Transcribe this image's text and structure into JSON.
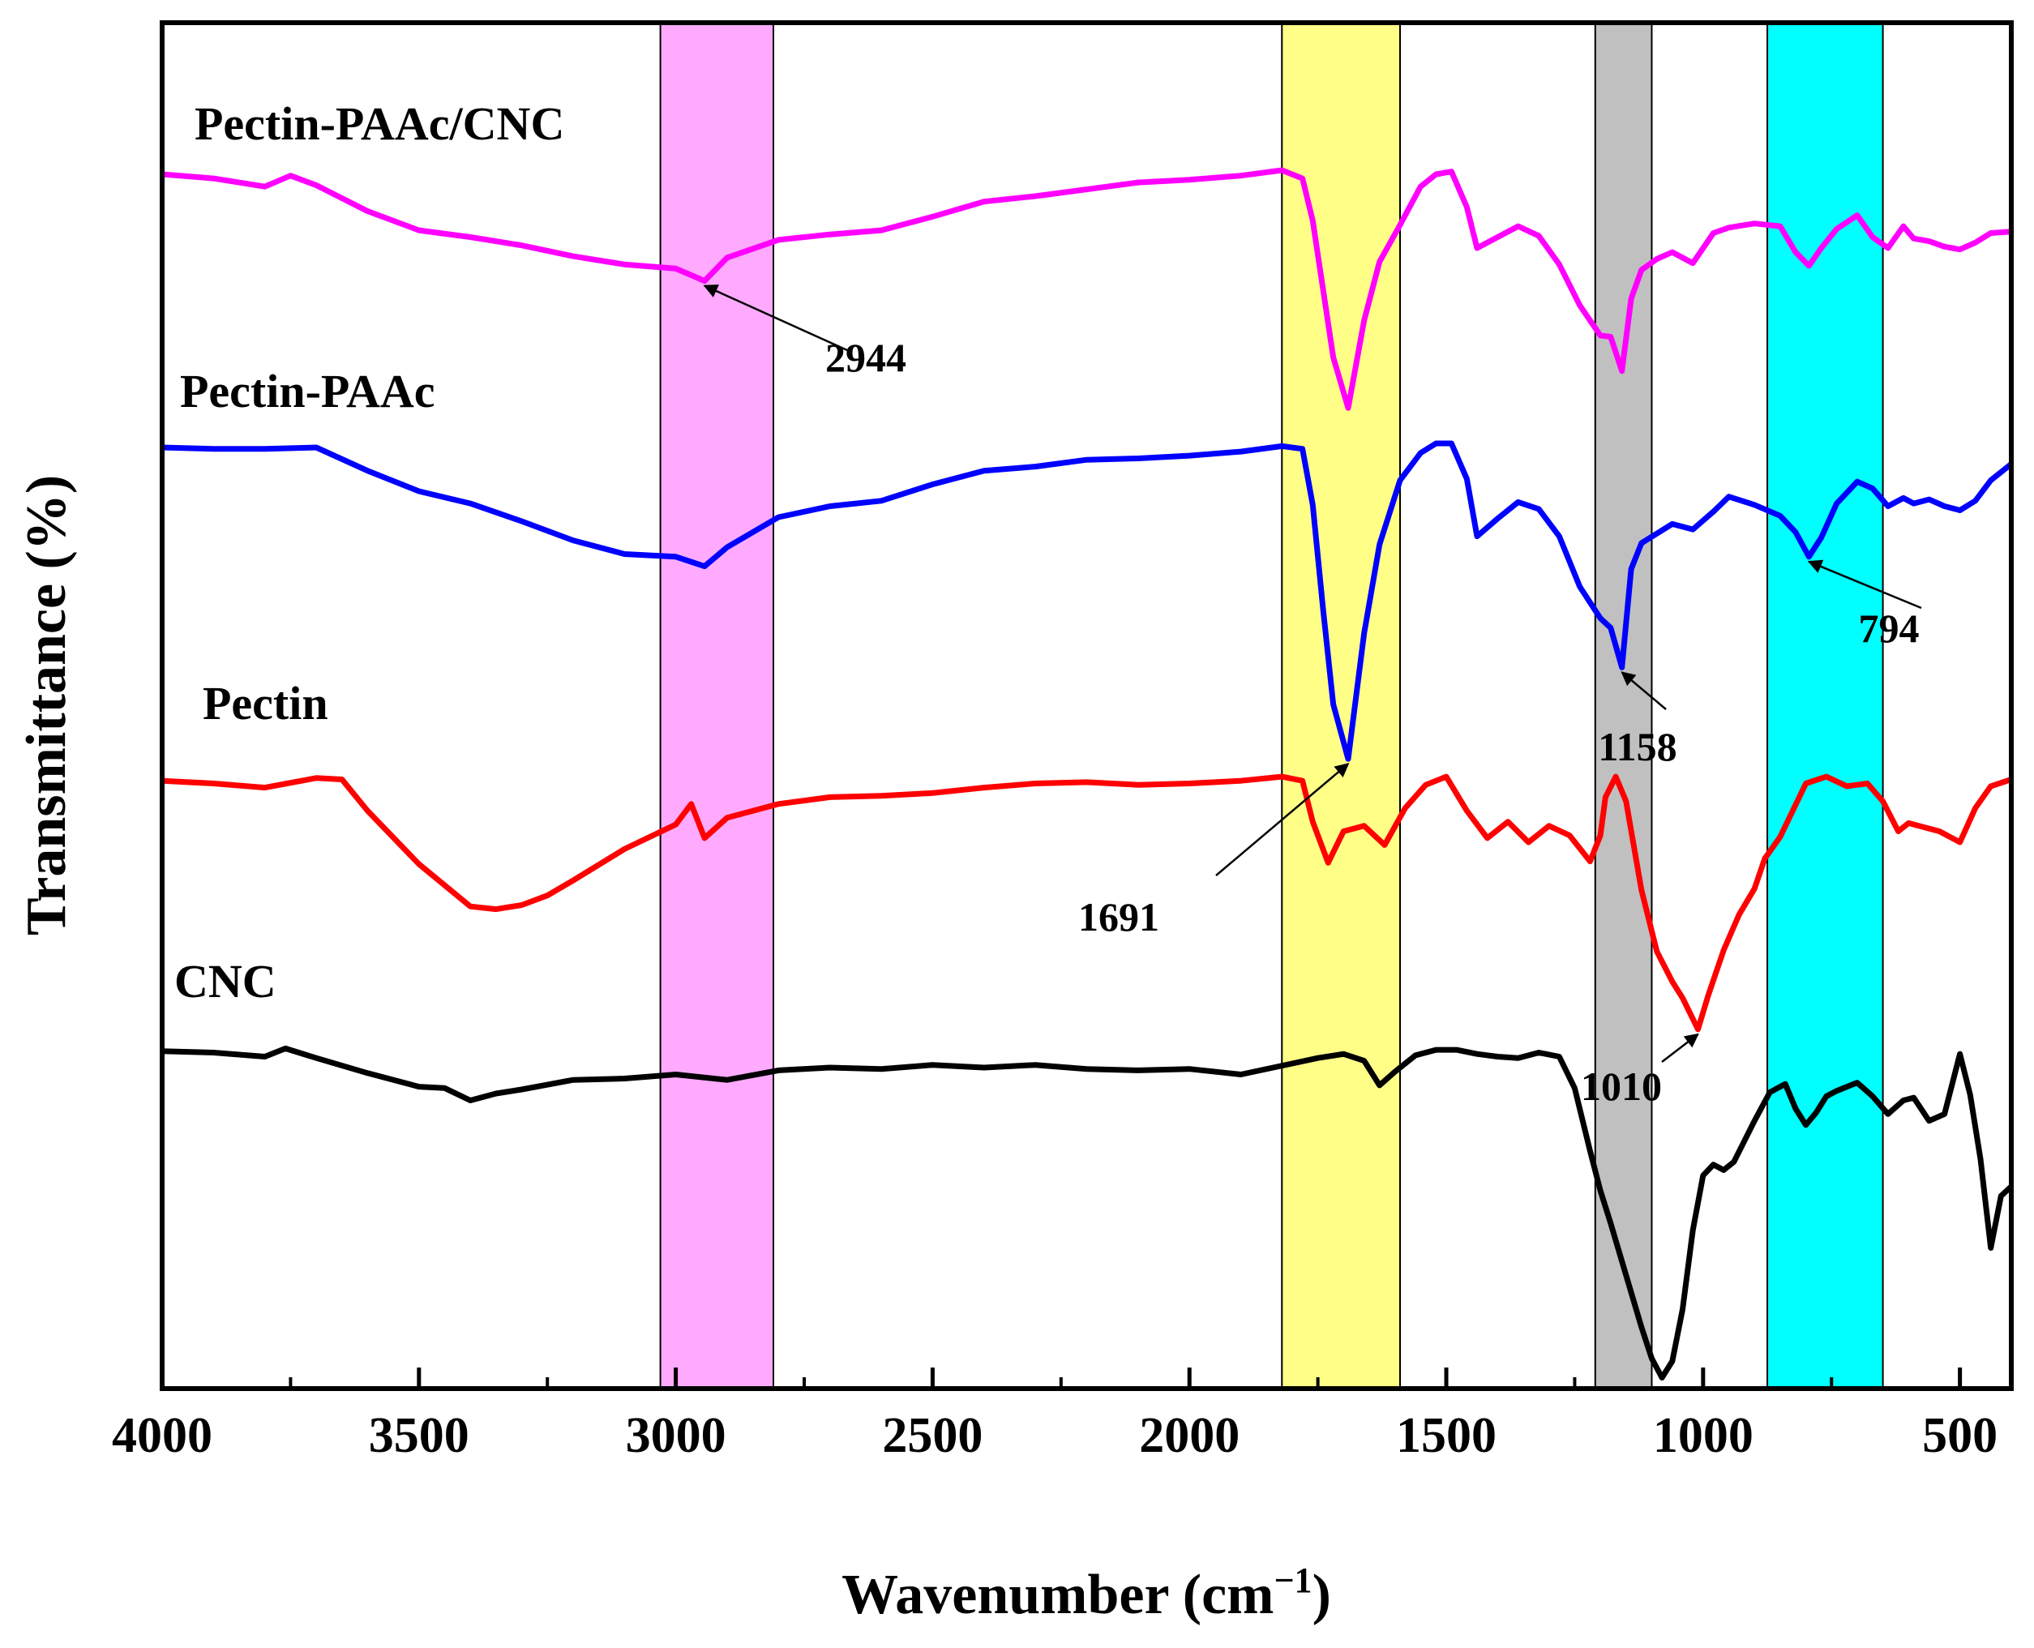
{
  "chart_data": {
    "type": "line",
    "title": "",
    "xlabel": "Wavenumber (cm",
    "xlabel_superscript": "−1",
    "xlabel_close": ")",
    "ylabel": "Transmittance (%)",
    "xlim": [
      4000,
      400
    ],
    "ylim": [
      0,
      100
    ],
    "x_ticks": [
      4000,
      3500,
      3000,
      2500,
      2000,
      1500,
      1000,
      500
    ],
    "x_tick_labels": [
      "4000",
      "3500",
      "3000",
      "2500",
      "2000",
      "1500",
      "1000",
      "500"
    ],
    "x_minor_ticks": [
      3750,
      3250,
      2750,
      2250,
      1750,
      1250,
      750
    ],
    "y_ticks_shown": false,
    "highlight_bands": [
      {
        "from": 3030,
        "to": 2810,
        "color": "#ffaaff"
      },
      {
        "from": 1820,
        "to": 1590,
        "color": "#ffff88"
      },
      {
        "from": 1210,
        "to": 1100,
        "color": "#c0c0c0"
      },
      {
        "from": 875,
        "to": 650,
        "color": "#00ffff"
      }
    ],
    "series": [
      {
        "name": "Pectin-PAAc/CNC",
        "color": "#ff00ff",
        "x": [
          4000,
          3900,
          3800,
          3750,
          3700,
          3600,
          3500,
          3400,
          3300,
          3200,
          3100,
          3000,
          2944,
          2900,
          2800,
          2700,
          2600,
          2500,
          2400,
          2300,
          2200,
          2100,
          2000,
          1900,
          1820,
          1780,
          1760,
          1740,
          1720,
          1691,
          1660,
          1630,
          1590,
          1550,
          1520,
          1490,
          1460,
          1440,
          1400,
          1360,
          1320,
          1280,
          1240,
          1200,
          1180,
          1158,
          1140,
          1120,
          1090,
          1060,
          1020,
          980,
          950,
          900,
          850,
          820,
          794,
          770,
          740,
          700,
          670,
          640,
          610,
          590,
          560,
          530,
          500,
          470,
          440,
          400
        ],
        "y": [
          88.9,
          88.6,
          88.0,
          88.8,
          88.1,
          86.2,
          84.8,
          84.3,
          83.7,
          82.9,
          82.3,
          82.0,
          81.1,
          82.8,
          84.1,
          84.5,
          84.8,
          85.8,
          86.9,
          87.3,
          87.8,
          88.3,
          88.5,
          88.8,
          89.2,
          88.6,
          85.5,
          80.5,
          75.5,
          71.8,
          78.2,
          82.5,
          85.2,
          88.0,
          88.9,
          89.1,
          86.5,
          83.5,
          84.3,
          85.1,
          84.4,
          82.3,
          79.3,
          77.1,
          77.0,
          74.5,
          79.8,
          81.9,
          82.7,
          83.2,
          82.4,
          84.6,
          85.0,
          85.3,
          85.1,
          83.2,
          82.2,
          83.5,
          84.9,
          85.9,
          84.3,
          83.5,
          85.1,
          84.2,
          84.0,
          83.6,
          83.4,
          83.9,
          84.6,
          84.7
        ]
      },
      {
        "name": "Pectin-PAAc",
        "color": "#0000ff",
        "x": [
          4000,
          3900,
          3800,
          3700,
          3600,
          3500,
          3400,
          3300,
          3200,
          3100,
          3000,
          2944,
          2900,
          2800,
          2700,
          2600,
          2500,
          2400,
          2300,
          2200,
          2100,
          2000,
          1900,
          1820,
          1780,
          1760,
          1740,
          1720,
          1691,
          1660,
          1630,
          1590,
          1550,
          1520,
          1490,
          1460,
          1440,
          1400,
          1360,
          1320,
          1280,
          1240,
          1200,
          1180,
          1158,
          1140,
          1120,
          1090,
          1060,
          1020,
          980,
          950,
          900,
          850,
          820,
          794,
          770,
          740,
          700,
          670,
          640,
          610,
          590,
          560,
          530,
          500,
          470,
          440,
          400
        ],
        "y": [
          68.9,
          68.8,
          68.8,
          68.9,
          67.2,
          65.7,
          64.8,
          63.5,
          62.1,
          61.1,
          60.9,
          60.2,
          61.6,
          63.8,
          64.6,
          65.0,
          66.2,
          67.2,
          67.5,
          68.0,
          68.1,
          68.3,
          68.6,
          69.0,
          68.8,
          64.7,
          57.1,
          50.1,
          46.1,
          55.3,
          61.8,
          66.5,
          68.5,
          69.2,
          69.2,
          66.6,
          62.4,
          63.7,
          64.9,
          64.4,
          62.4,
          58.7,
          56.4,
          55.7,
          52.8,
          60.0,
          61.9,
          62.6,
          63.3,
          62.9,
          64.2,
          65.3,
          64.7,
          63.9,
          62.7,
          60.9,
          62.3,
          64.8,
          66.4,
          65.9,
          64.6,
          65.2,
          64.8,
          65.1,
          64.6,
          64.3,
          65.0,
          66.5,
          67.7
        ]
      },
      {
        "name": "Pectin",
        "color": "#ff0000",
        "x": [
          4000,
          3900,
          3800,
          3700,
          3650,
          3600,
          3500,
          3400,
          3350,
          3300,
          3250,
          3200,
          3100,
          3000,
          2970,
          2944,
          2900,
          2800,
          2700,
          2600,
          2500,
          2400,
          2300,
          2200,
          2100,
          2000,
          1900,
          1820,
          1780,
          1760,
          1730,
          1700,
          1660,
          1620,
          1580,
          1540,
          1500,
          1460,
          1420,
          1380,
          1340,
          1300,
          1260,
          1220,
          1200,
          1190,
          1170,
          1150,
          1120,
          1090,
          1060,
          1040,
          1010,
          990,
          960,
          930,
          900,
          880,
          850,
          800,
          760,
          720,
          680,
          650,
          620,
          600,
          570,
          540,
          500,
          470,
          440,
          400
        ],
        "y": [
          44.5,
          44.3,
          44.0,
          44.7,
          44.6,
          42.3,
          38.4,
          35.3,
          35.1,
          35.4,
          36.1,
          37.2,
          39.5,
          41.3,
          42.8,
          40.3,
          41.8,
          42.8,
          43.3,
          43.4,
          43.6,
          44.0,
          44.3,
          44.4,
          44.2,
          44.3,
          44.5,
          44.8,
          44.5,
          41.5,
          38.5,
          40.8,
          41.2,
          39.8,
          42.5,
          44.2,
          44.8,
          42.3,
          40.3,
          41.5,
          40.0,
          41.2,
          40.5,
          38.6,
          40.5,
          43.3,
          44.8,
          43.0,
          36.5,
          32.0,
          29.8,
          28.6,
          26.3,
          28.8,
          32.1,
          34.7,
          36.6,
          38.8,
          40.4,
          44.3,
          44.8,
          44.1,
          44.3,
          43.0,
          40.8,
          41.4,
          41.1,
          40.8,
          40.0,
          42.5,
          44.1,
          44.6
        ]
      },
      {
        "name": "CNC",
        "color": "#000000",
        "x": [
          4000,
          3900,
          3800,
          3760,
          3700,
          3600,
          3500,
          3450,
          3400,
          3350,
          3300,
          3200,
          3100,
          3000,
          2900,
          2800,
          2700,
          2600,
          2500,
          2400,
          2300,
          2200,
          2100,
          2000,
          1900,
          1800,
          1750,
          1700,
          1660,
          1630,
          1600,
          1560,
          1520,
          1480,
          1440,
          1400,
          1360,
          1320,
          1280,
          1250,
          1220,
          1200,
          1180,
          1150,
          1120,
          1100,
          1080,
          1060,
          1040,
          1020,
          1000,
          980,
          960,
          940,
          900,
          870,
          840,
          820,
          800,
          780,
          760,
          740,
          700,
          670,
          640,
          610,
          590,
          560,
          530,
          500,
          480,
          460,
          440,
          420,
          400
        ],
        "y": [
          24.7,
          24.6,
          24.3,
          24.9,
          24.2,
          23.1,
          22.1,
          22.0,
          21.1,
          21.6,
          21.9,
          22.6,
          22.7,
          23.0,
          22.6,
          23.3,
          23.5,
          23.4,
          23.7,
          23.5,
          23.7,
          23.4,
          23.3,
          23.4,
          23.0,
          23.8,
          24.2,
          24.5,
          24.0,
          22.2,
          23.2,
          24.4,
          24.8,
          24.8,
          24.5,
          24.3,
          24.2,
          24.6,
          24.3,
          22.0,
          17.4,
          14.5,
          12.1,
          8.3,
          4.5,
          2.2,
          0.8,
          2.0,
          5.8,
          11.6,
          15.6,
          16.4,
          16.0,
          16.6,
          19.6,
          21.7,
          22.3,
          20.5,
          19.3,
          20.2,
          21.4,
          21.8,
          22.4,
          21.4,
          20.1,
          21.1,
          21.3,
          19.6,
          20.1,
          24.5,
          21.5,
          16.8,
          10.3,
          14.1,
          14.8
        ]
      }
    ],
    "series_labels": [
      {
        "text": "Pectin-PAAc/CNC",
        "series": "Pectin-PAAc/CNC"
      },
      {
        "text": "Pectin-PAAc",
        "series": "Pectin-PAAc"
      },
      {
        "text": "Pectin",
        "series": "Pectin"
      },
      {
        "text": "CNC",
        "series": "CNC"
      }
    ],
    "annotations": [
      {
        "text": "2944",
        "x": 2944,
        "y": 81.1,
        "series": "Pectin-PAAc/CNC"
      },
      {
        "text": "1691",
        "x": 1691,
        "y": 46.1,
        "series": "Pectin-PAAc"
      },
      {
        "text": "1158",
        "x": 1158,
        "y": 52.8,
        "series": "Pectin-PAAc"
      },
      {
        "text": "794",
        "x": 794,
        "y": 60.9,
        "series": "Pectin-PAAc"
      },
      {
        "text": "1010",
        "x": 1010,
        "y": 26.3,
        "series": "Pectin"
      }
    ]
  }
}
